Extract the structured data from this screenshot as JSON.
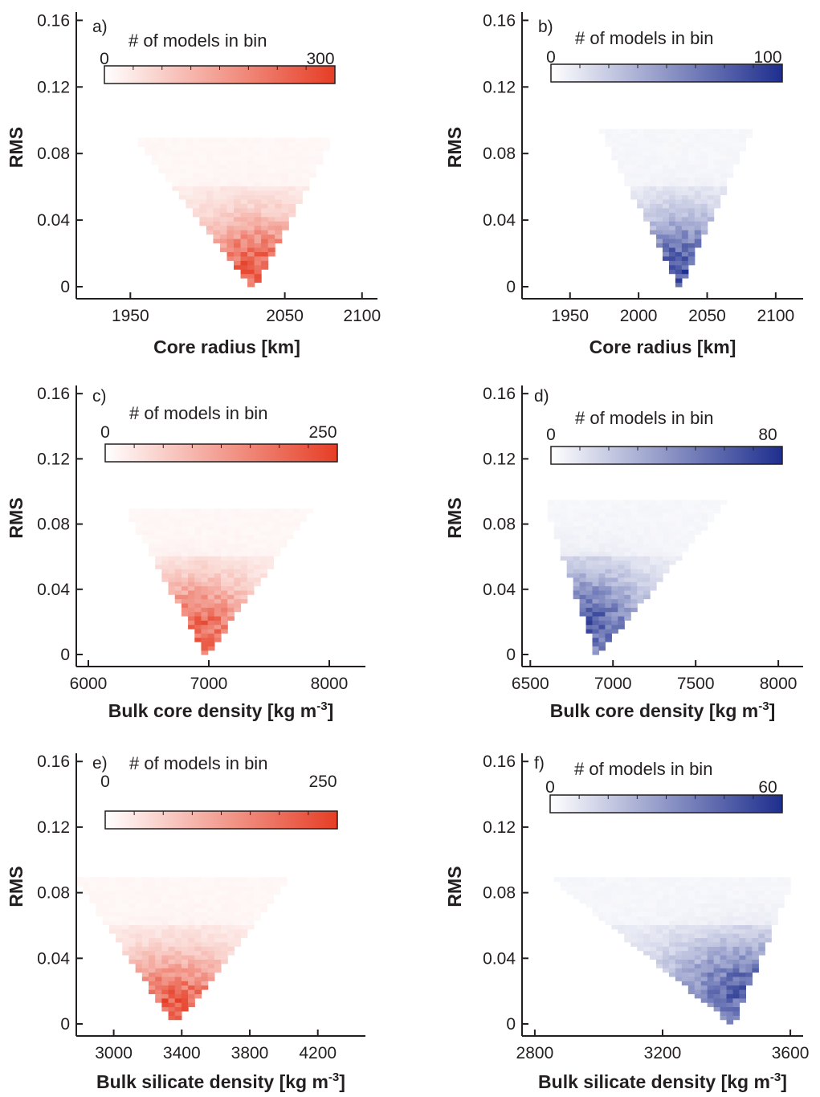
{
  "chart_data": [
    {
      "type": "heatmap",
      "panel_label": "a)",
      "xlabel": "Core radius [km]",
      "ylabel": "RMS",
      "xlim": [
        1915,
        2110
      ],
      "ylim": [
        0,
        0.165
      ],
      "xticks": [
        1950,
        2050,
        2100
      ],
      "xtick_labels": [
        "1950",
        "2050",
        "2100"
      ],
      "yticks": [
        0,
        0.04,
        0.08,
        0.12,
        0.16
      ],
      "ytick_labels": [
        "0",
        "0.04",
        "0.08",
        "0.12",
        "0.16"
      ],
      "colorbar": {
        "title": "# of models in bin",
        "min": 0,
        "max": 300,
        "min_label": "0",
        "max_label": "300",
        "colormap": "reds"
      },
      "density_ridge": {
        "x_min": 1957,
        "x_max": 2078,
        "apex_x": 2030,
        "max_rms": 0.085
      },
      "dense_region": {
        "x_center": 2032,
        "rms_center": 0.015
      }
    },
    {
      "type": "heatmap",
      "panel_label": "b)",
      "xlabel": "Core radius [km]",
      "ylabel": "RMS",
      "xlim": [
        1915,
        2120
      ],
      "ylim": [
        0,
        0.165
      ],
      "xticks": [
        1950,
        2000,
        2050,
        2100
      ],
      "xtick_labels": [
        "1950",
        "2000",
        "2050",
        "2100"
      ],
      "yticks": [
        0,
        0.04,
        0.08,
        0.12,
        0.16
      ],
      "ytick_labels": [
        "0",
        "0.04",
        "0.08",
        "0.12",
        "0.16"
      ],
      "colorbar": {
        "title": "# of models in bin",
        "min": 0,
        "max": 100,
        "min_label": "0",
        "max_label": "100",
        "colormap": "blues"
      },
      "density_ridge": {
        "x_min": 1975,
        "x_max": 2080,
        "apex_x": 2030,
        "max_rms": 0.09
      },
      "dense_region": {
        "x_center": 2033,
        "rms_center": 0.015
      }
    },
    {
      "type": "heatmap",
      "panel_label": "c)",
      "xlabel": "Bulk core density [kg m-3]",
      "ylabel": "RMS",
      "xlim": [
        5900,
        8300
      ],
      "ylim": [
        0,
        0.165
      ],
      "xticks": [
        6000,
        7000,
        8000
      ],
      "xtick_labels": [
        "6000",
        "7000",
        "8000"
      ],
      "yticks": [
        0,
        0.04,
        0.08,
        0.12,
        0.16
      ],
      "ytick_labels": [
        "0",
        "0.04",
        "0.08",
        "0.12",
        "0.16"
      ],
      "colorbar": {
        "title": "# of models in bin",
        "min": 0,
        "max": 250,
        "min_label": "0",
        "max_label": "250",
        "colormap": "reds"
      },
      "density_ridge": {
        "x_min": 6350,
        "x_max": 7800,
        "apex_x": 6980,
        "max_rms": 0.085
      },
      "dense_region": {
        "x_center": 6880,
        "rms_center": 0.02
      }
    },
    {
      "type": "heatmap",
      "panel_label": "d)",
      "xlabel": "Bulk core density [kg m-3]",
      "ylabel": "RMS",
      "xlim": [
        6450,
        8150
      ],
      "ylim": [
        0,
        0.165
      ],
      "xticks": [
        6500,
        7000,
        7500,
        8000
      ],
      "xtick_labels": [
        "6500",
        "7000",
        "7500",
        "8000"
      ],
      "yticks": [
        0,
        0.04,
        0.08,
        0.12,
        0.16
      ],
      "ytick_labels": [
        "0",
        "0.04",
        "0.08",
        "0.12",
        "0.16"
      ],
      "colorbar": {
        "title": "# of models in bin",
        "min": 0,
        "max": 80,
        "min_label": "0",
        "max_label": "80",
        "colormap": "blues"
      },
      "density_ridge": {
        "x_min": 6600,
        "x_max": 7650,
        "apex_x": 6900,
        "max_rms": 0.09
      },
      "dense_region": {
        "x_center": 6820,
        "rms_center": 0.025
      }
    },
    {
      "type": "heatmap",
      "panel_label": "e)",
      "xlabel": "Bulk silicate density [kg m-3]",
      "ylabel": "RMS",
      "xlim": [
        2780,
        4480
      ],
      "ylim": [
        0,
        0.165
      ],
      "xticks": [
        3000,
        3400,
        3800,
        4200
      ],
      "xtick_labels": [
        "3000",
        "3400",
        "3800",
        "4200"
      ],
      "yticks": [
        0,
        0.04,
        0.08,
        0.12,
        0.16
      ],
      "ytick_labels": [
        "0",
        "0.04",
        "0.08",
        "0.12",
        "0.16"
      ],
      "colorbar": {
        "title": "# of models in bin",
        "min": 0,
        "max": 250,
        "min_label": "0",
        "max_label": "250",
        "colormap": "reds"
      },
      "density_ridge": {
        "x_min": 2800,
        "x_max": 4000,
        "apex_x": 3360,
        "max_rms": 0.085
      },
      "dense_region": {
        "x_center": 3350,
        "rms_center": 0.015
      }
    },
    {
      "type": "heatmap",
      "panel_label": "f)",
      "xlabel": "Bulk silicate density [kg m-3]",
      "ylabel": "RMS",
      "xlim": [
        2760,
        3640
      ],
      "ylim": [
        0,
        0.165
      ],
      "xticks": [
        2800,
        3200,
        3600
      ],
      "xtick_labels": [
        "2800",
        "3200",
        "3600"
      ],
      "yticks": [
        0,
        0.04,
        0.08,
        0.12,
        0.16
      ],
      "ytick_labels": [
        "0",
        "0.04",
        "0.08",
        "0.12",
        "0.16"
      ],
      "colorbar": {
        "title": "# of models in bin",
        "min": 0,
        "max": 60,
        "min_label": "0",
        "max_label": "60",
        "colormap": "blues"
      },
      "density_ridge": {
        "x_min": 2880,
        "x_max": 3600,
        "apex_x": 3420,
        "max_rms": 0.085
      },
      "dense_region": {
        "x_center": 3480,
        "rms_center": 0.025
      }
    }
  ],
  "colors": {
    "red": "#e63d25",
    "blue": "#1e2e8e",
    "axis": "#231f20"
  }
}
